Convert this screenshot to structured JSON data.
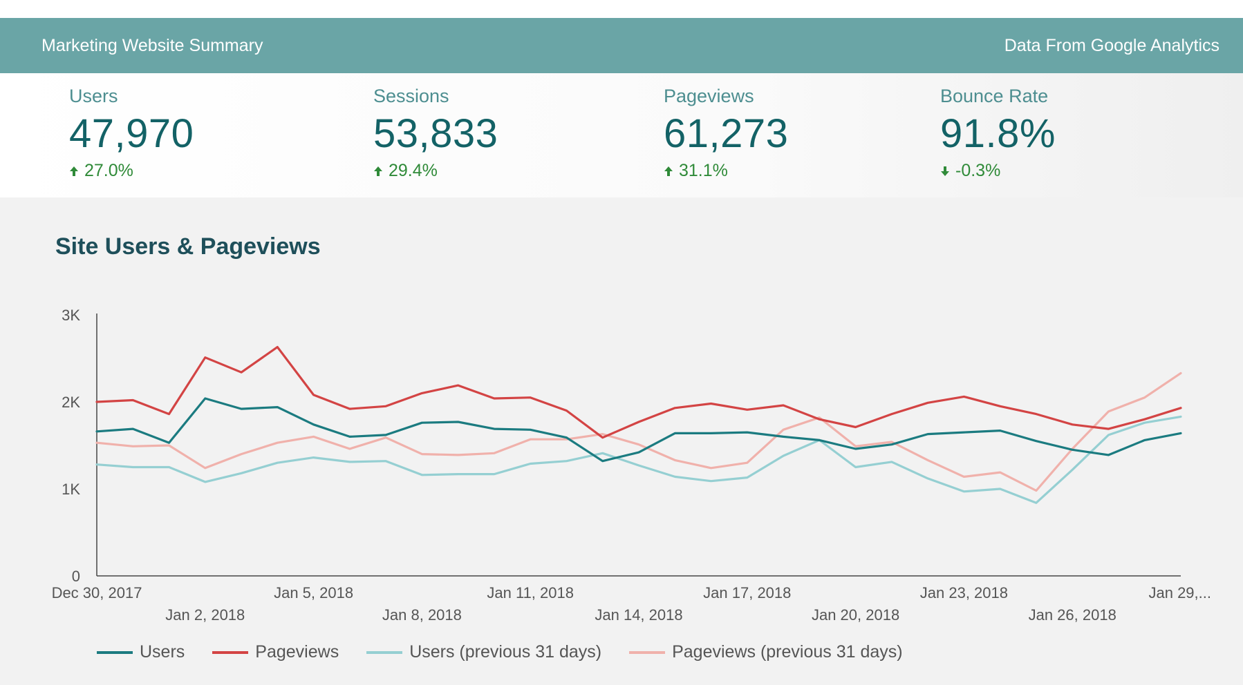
{
  "header": {
    "title": "Marketing Website Summary",
    "source": "Data From Google Analytics"
  },
  "kpis": [
    {
      "label": "Users",
      "value": "47,970",
      "delta": "27.0%",
      "direction": "up"
    },
    {
      "label": "Sessions",
      "value": "53,833",
      "delta": "29.4%",
      "direction": "up"
    },
    {
      "label": "Pageviews",
      "value": "61,273",
      "delta": "31.1%",
      "direction": "up"
    },
    {
      "label": "Bounce Rate",
      "value": "91.8%",
      "delta": "-0.3%",
      "direction": "down"
    }
  ],
  "colors": {
    "header_bg": "#6aa5a6",
    "users": "#1b7b80",
    "pageviews": "#d34444",
    "users_prev": "#95cfd2",
    "pageviews_prev": "#f0b1ab",
    "delta_positive": "#2f8a38"
  },
  "chart_data": {
    "type": "line",
    "title": "Site Users & Pageviews",
    "ylim": [
      0,
      3000
    ],
    "y_ticks": [
      {
        "value": 0,
        "label": "0"
      },
      {
        "value": 1000,
        "label": "1K"
      },
      {
        "value": 2000,
        "label": "2K"
      },
      {
        "value": 3000,
        "label": "3K"
      }
    ],
    "x": [
      "2017-12-30",
      "2017-12-31",
      "2018-01-01",
      "2018-01-02",
      "2018-01-03",
      "2018-01-04",
      "2018-01-05",
      "2018-01-06",
      "2018-01-07",
      "2018-01-08",
      "2018-01-09",
      "2018-01-10",
      "2018-01-11",
      "2018-01-12",
      "2018-01-13",
      "2018-01-14",
      "2018-01-15",
      "2018-01-16",
      "2018-01-17",
      "2018-01-18",
      "2018-01-19",
      "2018-01-20",
      "2018-01-21",
      "2018-01-22",
      "2018-01-23",
      "2018-01-24",
      "2018-01-25",
      "2018-01-26",
      "2018-01-27",
      "2018-01-28",
      "2018-01-29"
    ],
    "x_tick_labels": [
      {
        "index": 0,
        "label": "Dec 30, 2017",
        "row": 1
      },
      {
        "index": 3,
        "label": "Jan 2, 2018",
        "row": 2
      },
      {
        "index": 6,
        "label": "Jan 5, 2018",
        "row": 1
      },
      {
        "index": 9,
        "label": "Jan 8, 2018",
        "row": 2
      },
      {
        "index": 12,
        "label": "Jan 11, 2018",
        "row": 1
      },
      {
        "index": 15,
        "label": "Jan 14, 2018",
        "row": 2
      },
      {
        "index": 18,
        "label": "Jan 17, 2018",
        "row": 1
      },
      {
        "index": 21,
        "label": "Jan 20, 2018",
        "row": 2
      },
      {
        "index": 24,
        "label": "Jan 23, 2018",
        "row": 1
      },
      {
        "index": 27,
        "label": "Jan 26, 2018",
        "row": 2
      },
      {
        "index": 30,
        "label": "Jan 29,...",
        "row": 1
      }
    ],
    "grid": false,
    "legend_position": "bottom",
    "series": [
      {
        "name": "Users",
        "color": "#1b7b80",
        "values": [
          1660,
          1690,
          1530,
          2040,
          1920,
          1940,
          1740,
          1600,
          1620,
          1760,
          1770,
          1690,
          1680,
          1590,
          1320,
          1420,
          1640,
          1640,
          1650,
          1600,
          1560,
          1460,
          1510,
          1630,
          1650,
          1670,
          1550,
          1450,
          1390,
          1560,
          1640
        ]
      },
      {
        "name": "Pageviews",
        "color": "#d34444",
        "values": [
          2000,
          2020,
          1860,
          2510,
          2340,
          2630,
          2080,
          1920,
          1950,
          2100,
          2190,
          2040,
          2050,
          1900,
          1590,
          1770,
          1930,
          1980,
          1910,
          1960,
          1800,
          1710,
          1860,
          1990,
          2060,
          1950,
          1860,
          1740,
          1690,
          1800,
          1930
        ]
      },
      {
        "name": "Users (previous 31 days)",
        "color": "#95cfd2",
        "values": [
          1280,
          1250,
          1250,
          1080,
          1180,
          1300,
          1360,
          1310,
          1320,
          1160,
          1170,
          1170,
          1290,
          1320,
          1410,
          1270,
          1140,
          1090,
          1130,
          1380,
          1560,
          1250,
          1310,
          1120,
          970,
          1000,
          840,
          1220,
          1620,
          1760,
          1830
        ]
      },
      {
        "name": "Pageviews (previous 31 days)",
        "color": "#f0b1ab",
        "values": [
          1530,
          1490,
          1500,
          1240,
          1400,
          1530,
          1600,
          1460,
          1590,
          1400,
          1390,
          1410,
          1570,
          1570,
          1630,
          1510,
          1330,
          1240,
          1300,
          1680,
          1820,
          1490,
          1540,
          1330,
          1140,
          1190,
          980,
          1460,
          1890,
          2050,
          2330
        ]
      }
    ]
  }
}
